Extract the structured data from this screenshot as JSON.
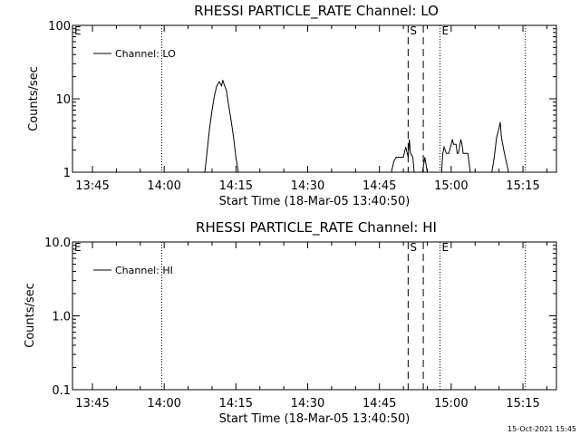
{
  "footer": {
    "timestamp": "15-Oct-2021 15:45"
  },
  "chart_data": [
    {
      "type": "line",
      "title": "RHESSI PARTICLE_RATE Channel: LO",
      "xlabel": "Start Time (18-Mar-05 13:40:50)",
      "ylabel": "Counts/sec",
      "y_scale": "log",
      "ylim": [
        1,
        100
      ],
      "y_ticks": [
        1,
        10,
        100
      ],
      "y_tick_labels": [
        "1",
        "10",
        "100"
      ],
      "xlim": [
        "13:40:50",
        "15:22:00"
      ],
      "x_ticks": [
        "13:45",
        "14:00",
        "14:15",
        "14:30",
        "14:45",
        "15:00",
        "15:15"
      ],
      "legend": {
        "position": "top-left",
        "entries": [
          "Channel: LO"
        ]
      },
      "markers": {
        "dotted_lines": [
          "13:59:30",
          "14:57:40",
          "15:15:30"
        ],
        "dashed_lines": [
          "14:51:00",
          "14:54:10"
        ],
        "labels": [
          {
            "text": "E",
            "at": "13:40:50"
          },
          {
            "text": "S",
            "at": "14:51:00"
          },
          {
            "text": "E",
            "at": "14:57:40"
          }
        ]
      },
      "series": [
        {
          "name": "Channel: LO",
          "points": [
            [
              "14:08:30",
              1
            ],
            [
              "14:09:00",
              2
            ],
            [
              "14:09:30",
              4
            ],
            [
              "14:10:00",
              7
            ],
            [
              "14:10:30",
              11
            ],
            [
              "14:11:00",
              15
            ],
            [
              "14:11:30",
              17
            ],
            [
              "14:12:00",
              15
            ],
            [
              "14:12:15",
              18
            ],
            [
              "14:12:30",
              16
            ],
            [
              "14:13:00",
              13
            ],
            [
              "14:13:30",
              8
            ],
            [
              "14:14:00",
              5
            ],
            [
              "14:14:30",
              3
            ],
            [
              "14:15:00",
              1.6
            ],
            [
              "14:15:30",
              1
            ],
            [
              "14:47:30",
              1
            ],
            [
              "14:48:00",
              1.4
            ],
            [
              "14:48:30",
              1.6
            ],
            [
              "14:49:00",
              1.6
            ],
            [
              "14:49:30",
              1.6
            ],
            [
              "14:50:00",
              1.6
            ],
            [
              "14:50:30",
              2.2
            ],
            [
              "14:51:00",
              1.6
            ],
            [
              "14:51:15",
              2.8
            ],
            [
              "14:51:30",
              1.8
            ],
            [
              "14:52:00",
              1.6
            ],
            [
              "14:52:15",
              1
            ],
            [
              "14:54:00",
              1
            ],
            [
              "14:54:30",
              1.6
            ],
            [
              "14:55:00",
              1
            ],
            [
              "14:58:00",
              1
            ],
            [
              "14:58:15",
              1.8
            ],
            [
              "14:58:30",
              2.2
            ],
            [
              "14:59:00",
              1.8
            ],
            [
              "14:59:30",
              1.8
            ],
            [
              "15:00:00",
              2.4
            ],
            [
              "15:00:15",
              2.8
            ],
            [
              "15:00:30",
              2.4
            ],
            [
              "15:01:00",
              2.4
            ],
            [
              "15:01:15",
              1.8
            ],
            [
              "15:01:30",
              1.8
            ],
            [
              "15:01:45",
              2.2
            ],
            [
              "15:02:00",
              2.8
            ],
            [
              "15:02:15",
              2.4
            ],
            [
              "15:02:30",
              1.8
            ],
            [
              "15:03:00",
              1.8
            ],
            [
              "15:03:30",
              1.8
            ],
            [
              "15:03:45",
              1.3
            ],
            [
              "15:04:00",
              1
            ],
            [
              "15:08:30",
              1
            ],
            [
              "15:09:00",
              1.6
            ],
            [
              "15:09:30",
              3
            ],
            [
              "15:10:00",
              4
            ],
            [
              "15:10:15",
              4.8
            ],
            [
              "15:10:30",
              3
            ],
            [
              "15:11:00",
              2
            ],
            [
              "15:11:30",
              1.4
            ],
            [
              "15:12:00",
              1
            ]
          ]
        }
      ]
    },
    {
      "type": "line",
      "title": "RHESSI PARTICLE_RATE Channel: HI",
      "xlabel": "Start Time (18-Mar-05 13:40:50)",
      "ylabel": "Counts/sec",
      "y_scale": "log",
      "ylim": [
        0.1,
        10
      ],
      "y_ticks": [
        0.1,
        1,
        10
      ],
      "y_tick_labels": [
        "0.1",
        "1.0",
        "10.0"
      ],
      "xlim": [
        "13:40:50",
        "15:22:00"
      ],
      "x_ticks": [
        "13:45",
        "14:00",
        "14:15",
        "14:30",
        "14:45",
        "15:00",
        "15:15"
      ],
      "legend": {
        "position": "top-left",
        "entries": [
          "Channel: HI"
        ]
      },
      "markers": {
        "dotted_lines": [
          "13:59:30",
          "14:57:40",
          "15:15:30"
        ],
        "dashed_lines": [
          "14:51:00",
          "14:54:10"
        ],
        "labels": [
          {
            "text": "E",
            "at": "13:40:50"
          },
          {
            "text": "S",
            "at": "14:51:00"
          },
          {
            "text": "E",
            "at": "14:57:40"
          }
        ]
      },
      "series": [
        {
          "name": "Channel: HI",
          "points": []
        }
      ]
    }
  ]
}
